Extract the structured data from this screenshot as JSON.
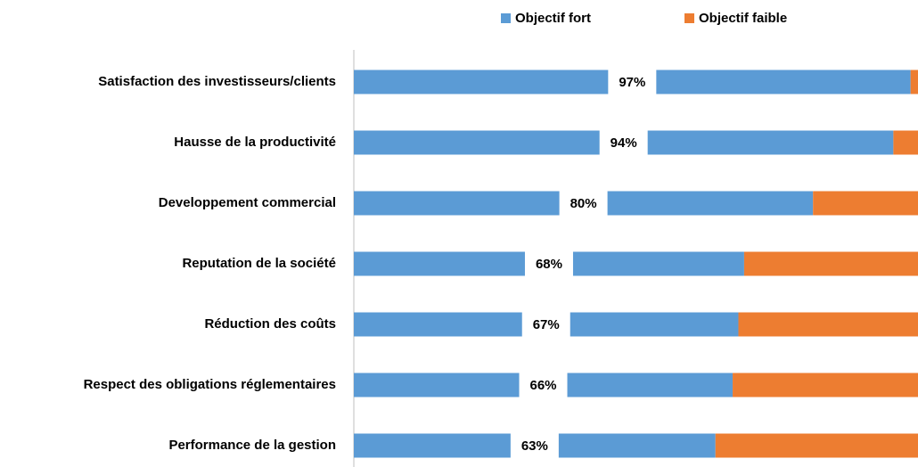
{
  "chart_data": {
    "type": "bar",
    "orientation": "horizontal",
    "stacked": true,
    "categories": [
      "Satisfaction des investisseurs/clients",
      "Hausse de la productivité",
      "Developpement commercial",
      "Reputation de la société",
      "Réduction des coûts",
      "Respect des obligations réglementaires",
      "Performance de la gestion"
    ],
    "series": [
      {
        "name": "Objectif fort",
        "color": "#5b9bd5",
        "values": [
          97,
          94,
          80,
          68,
          67,
          66,
          63
        ],
        "value_labels": [
          "97%",
          "94%",
          "80%",
          "68%",
          "67%",
          "66%",
          "63%"
        ]
      },
      {
        "name": "Objectif faible",
        "color": "#ed7d31",
        "values": [
          3,
          6,
          20,
          32,
          33,
          34,
          37
        ]
      }
    ],
    "xlim": [
      0,
      100
    ],
    "legend": "top"
  }
}
